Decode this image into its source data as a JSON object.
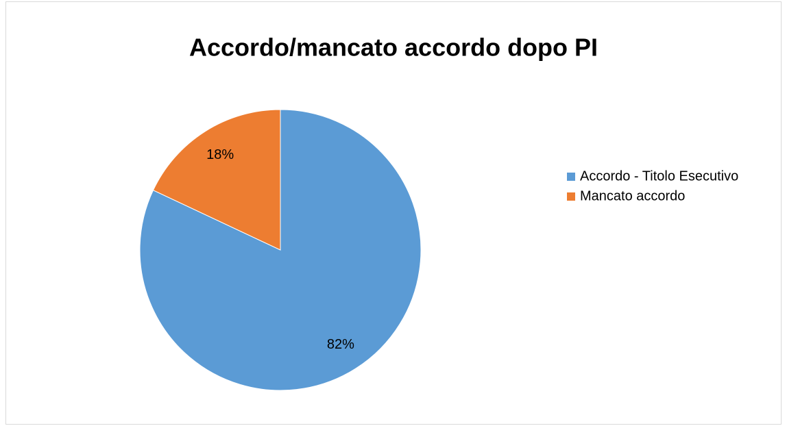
{
  "chart_data": {
    "type": "pie",
    "title": "Accordo/mancato accordo dopo PI",
    "categories": [
      "Accordo - Titolo Esecutivo",
      "Mancato accordo"
    ],
    "values": [
      82,
      18
    ],
    "value_labels": [
      "82%",
      "18%"
    ],
    "colors": [
      "#5b9bd5",
      "#ed7d31"
    ],
    "legend": "right"
  }
}
